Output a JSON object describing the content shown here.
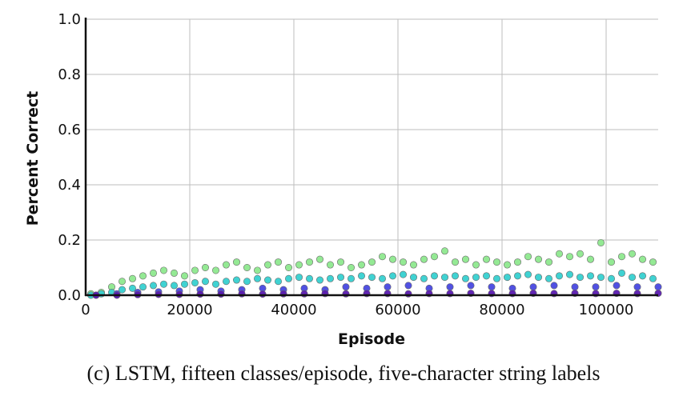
{
  "chart_data": {
    "type": "scatter",
    "title": "",
    "xlabel": "Episode",
    "ylabel": "Percent Correct",
    "xlim": [
      0,
      110000
    ],
    "ylim": [
      0,
      1.0
    ],
    "x_ticks": [
      0,
      20000,
      40000,
      60000,
      80000,
      100000
    ],
    "x_tick_labels": [
      "0",
      "20000",
      "40000",
      "60000",
      "80000",
      "100000"
    ],
    "y_ticks": [
      0.0,
      0.2,
      0.4,
      0.6,
      0.8,
      1.0
    ],
    "y_tick_labels": [
      "0.0",
      "0.2",
      "0.4",
      "0.6",
      "0.8",
      "1.0"
    ],
    "grid": true,
    "caption": "(c) LSTM, fifteen classes/episode, five-character string labels",
    "series": [
      {
        "color": "#8ee88e",
        "x": [
          1000,
          3000,
          5000,
          7000,
          9000,
          11000,
          13000,
          15000,
          17000,
          19000,
          21000,
          23000,
          25000,
          27000,
          29000,
          31000,
          33000,
          35000,
          37000,
          39000,
          41000,
          43000,
          45000,
          47000,
          49000,
          51000,
          53000,
          55000,
          57000,
          59000,
          61000,
          63000,
          65000,
          67000,
          69000,
          71000,
          73000,
          75000,
          77000,
          79000,
          81000,
          83000,
          85000,
          87000,
          89000,
          91000,
          93000,
          95000,
          97000,
          99000,
          101000,
          103000,
          105000,
          107000,
          109000
        ],
        "y": [
          0.005,
          0.01,
          0.03,
          0.05,
          0.06,
          0.07,
          0.08,
          0.09,
          0.08,
          0.07,
          0.09,
          0.1,
          0.09,
          0.11,
          0.12,
          0.1,
          0.09,
          0.11,
          0.12,
          0.1,
          0.11,
          0.12,
          0.13,
          0.11,
          0.12,
          0.1,
          0.11,
          0.12,
          0.14,
          0.13,
          0.12,
          0.11,
          0.13,
          0.14,
          0.16,
          0.12,
          0.13,
          0.11,
          0.13,
          0.12,
          0.11,
          0.12,
          0.14,
          0.13,
          0.12,
          0.15,
          0.14,
          0.15,
          0.13,
          0.19,
          0.12,
          0.14,
          0.15,
          0.13,
          0.12
        ]
      },
      {
        "color": "#36d0d0",
        "x": [
          1000,
          3000,
          5000,
          7000,
          9000,
          11000,
          13000,
          15000,
          17000,
          19000,
          21000,
          23000,
          25000,
          27000,
          29000,
          31000,
          33000,
          35000,
          37000,
          39000,
          41000,
          43000,
          45000,
          47000,
          49000,
          51000,
          53000,
          55000,
          57000,
          59000,
          61000,
          63000,
          65000,
          67000,
          69000,
          71000,
          73000,
          75000,
          77000,
          79000,
          81000,
          83000,
          85000,
          87000,
          89000,
          91000,
          93000,
          95000,
          97000,
          99000,
          101000,
          103000,
          105000,
          107000,
          109000
        ],
        "y": [
          0.0,
          0.005,
          0.01,
          0.02,
          0.025,
          0.03,
          0.035,
          0.04,
          0.035,
          0.04,
          0.045,
          0.05,
          0.04,
          0.05,
          0.055,
          0.05,
          0.06,
          0.055,
          0.05,
          0.06,
          0.065,
          0.06,
          0.055,
          0.06,
          0.065,
          0.06,
          0.07,
          0.065,
          0.06,
          0.07,
          0.075,
          0.065,
          0.06,
          0.07,
          0.065,
          0.07,
          0.06,
          0.065,
          0.07,
          0.06,
          0.065,
          0.07,
          0.075,
          0.065,
          0.06,
          0.07,
          0.075,
          0.065,
          0.07,
          0.065,
          0.06,
          0.08,
          0.065,
          0.07,
          0.06
        ]
      },
      {
        "color": "#4848e0",
        "x": [
          2000,
          6000,
          10000,
          14000,
          18000,
          22000,
          26000,
          30000,
          34000,
          38000,
          42000,
          46000,
          50000,
          54000,
          58000,
          62000,
          66000,
          70000,
          74000,
          78000,
          82000,
          86000,
          90000,
          94000,
          98000,
          102000,
          106000,
          110000
        ],
        "y": [
          0.0,
          0.005,
          0.01,
          0.012,
          0.015,
          0.02,
          0.015,
          0.02,
          0.025,
          0.02,
          0.025,
          0.02,
          0.03,
          0.025,
          0.03,
          0.035,
          0.025,
          0.03,
          0.035,
          0.03,
          0.025,
          0.03,
          0.035,
          0.03,
          0.03,
          0.035,
          0.03,
          0.03
        ]
      },
      {
        "color": "#5a1ab0",
        "x": [
          2000,
          6000,
          10000,
          14000,
          18000,
          22000,
          26000,
          30000,
          34000,
          38000,
          42000,
          46000,
          50000,
          54000,
          58000,
          62000,
          66000,
          70000,
          74000,
          78000,
          82000,
          86000,
          90000,
          94000,
          98000,
          102000,
          106000,
          110000
        ],
        "y": [
          0.0,
          0.0,
          0.002,
          0.003,
          0.003,
          0.004,
          0.004,
          0.005,
          0.004,
          0.005,
          0.005,
          0.006,
          0.005,
          0.006,
          0.006,
          0.005,
          0.006,
          0.006,
          0.007,
          0.006,
          0.006,
          0.007,
          0.006,
          0.007,
          0.006,
          0.007,
          0.006,
          0.007
        ]
      }
    ]
  }
}
